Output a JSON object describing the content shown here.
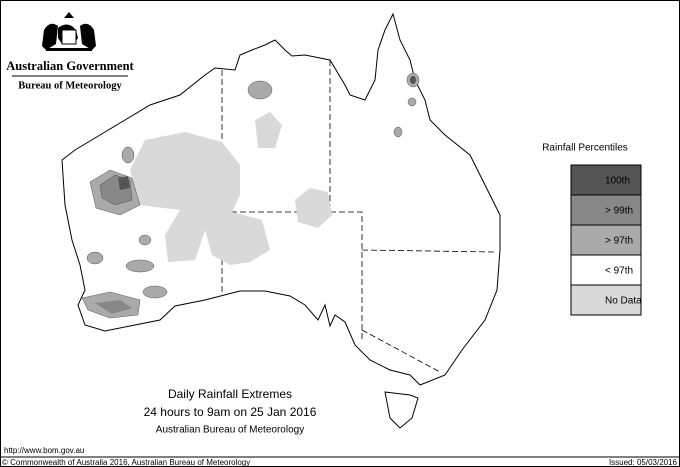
{
  "header": {
    "agency": "Australian Government",
    "bureau": "Bureau of Meteorology"
  },
  "legend": {
    "title": "Rainfall Percentiles",
    "items": [
      {
        "label": "100th",
        "color": "#555555"
      },
      {
        "label": "> 99th",
        "color": "#888888"
      },
      {
        "label": "> 97th",
        "color": "#aaaaaa"
      },
      {
        "label": "< 97th",
        "color": "#ffffff"
      },
      {
        "label": "No Data",
        "color": "#d9d9d9"
      }
    ]
  },
  "caption": {
    "title": "Daily Rainfall Extremes",
    "period": "24 hours to 9am on 25 Jan 2016",
    "source": "Australian Bureau of Meteorology"
  },
  "footer": {
    "url": "http://www.bom.gov.au",
    "copyright": "© Commonwealth of Australia 2016, Australian Bureau of Meteorology",
    "issued": "Issued: 05/03/2016"
  }
}
